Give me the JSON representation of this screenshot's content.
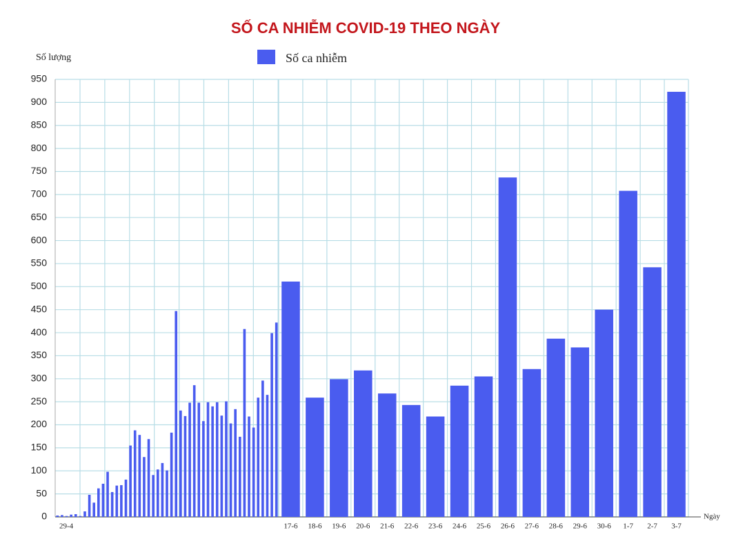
{
  "chart_data": {
    "type": "bar",
    "title": "SỐ CA NHIỄM COVID-19 THEO NGÀY",
    "y_label": "Số lượng",
    "x_label": "Ngày",
    "categories": [
      "29-4",
      null,
      null,
      null,
      null,
      null,
      null,
      null,
      null,
      null,
      null,
      null,
      null,
      null,
      null,
      null,
      null,
      null,
      null,
      null,
      null,
      null,
      null,
      null,
      null,
      null,
      null,
      null,
      null,
      null,
      null,
      null,
      null,
      null,
      null,
      null,
      null,
      null,
      null,
      null,
      null,
      null,
      null,
      null,
      null,
      null,
      null,
      null,
      null,
      "17-6",
      "18-6",
      "19-6",
      "20-6",
      "21-6",
      "22-6",
      "23-6",
      "24-6",
      "25-6",
      "26-6",
      "27-6",
      "28-6",
      "29-6",
      "30-6",
      "1-7",
      "2-7",
      "3-7"
    ],
    "series": [
      {
        "name": "Số ca nhiễm",
        "color": "#4a5cef",
        "values": [
          3,
          4,
          2,
          5,
          6,
          2,
          12,
          48,
          31,
          62,
          72,
          98,
          54,
          68,
          69,
          81,
          155,
          188,
          178,
          130,
          169,
          91,
          103,
          117,
          101,
          183,
          447,
          231,
          219,
          248,
          286,
          248,
          208,
          249,
          240,
          249,
          220,
          251,
          203,
          234,
          174,
          408,
          218,
          194,
          259,
          296,
          265,
          399,
          422,
          511,
          259,
          299,
          318,
          268,
          243,
          218,
          285,
          305,
          737,
          321,
          387,
          368,
          450,
          708,
          542,
          923
        ]
      }
    ],
    "ylim": [
      0,
      950
    ],
    "yticks": [
      0,
      50,
      100,
      150,
      200,
      250,
      300,
      350,
      400,
      450,
      500,
      550,
      600,
      650,
      700,
      750,
      800,
      850,
      900,
      950
    ],
    "grid": true
  }
}
